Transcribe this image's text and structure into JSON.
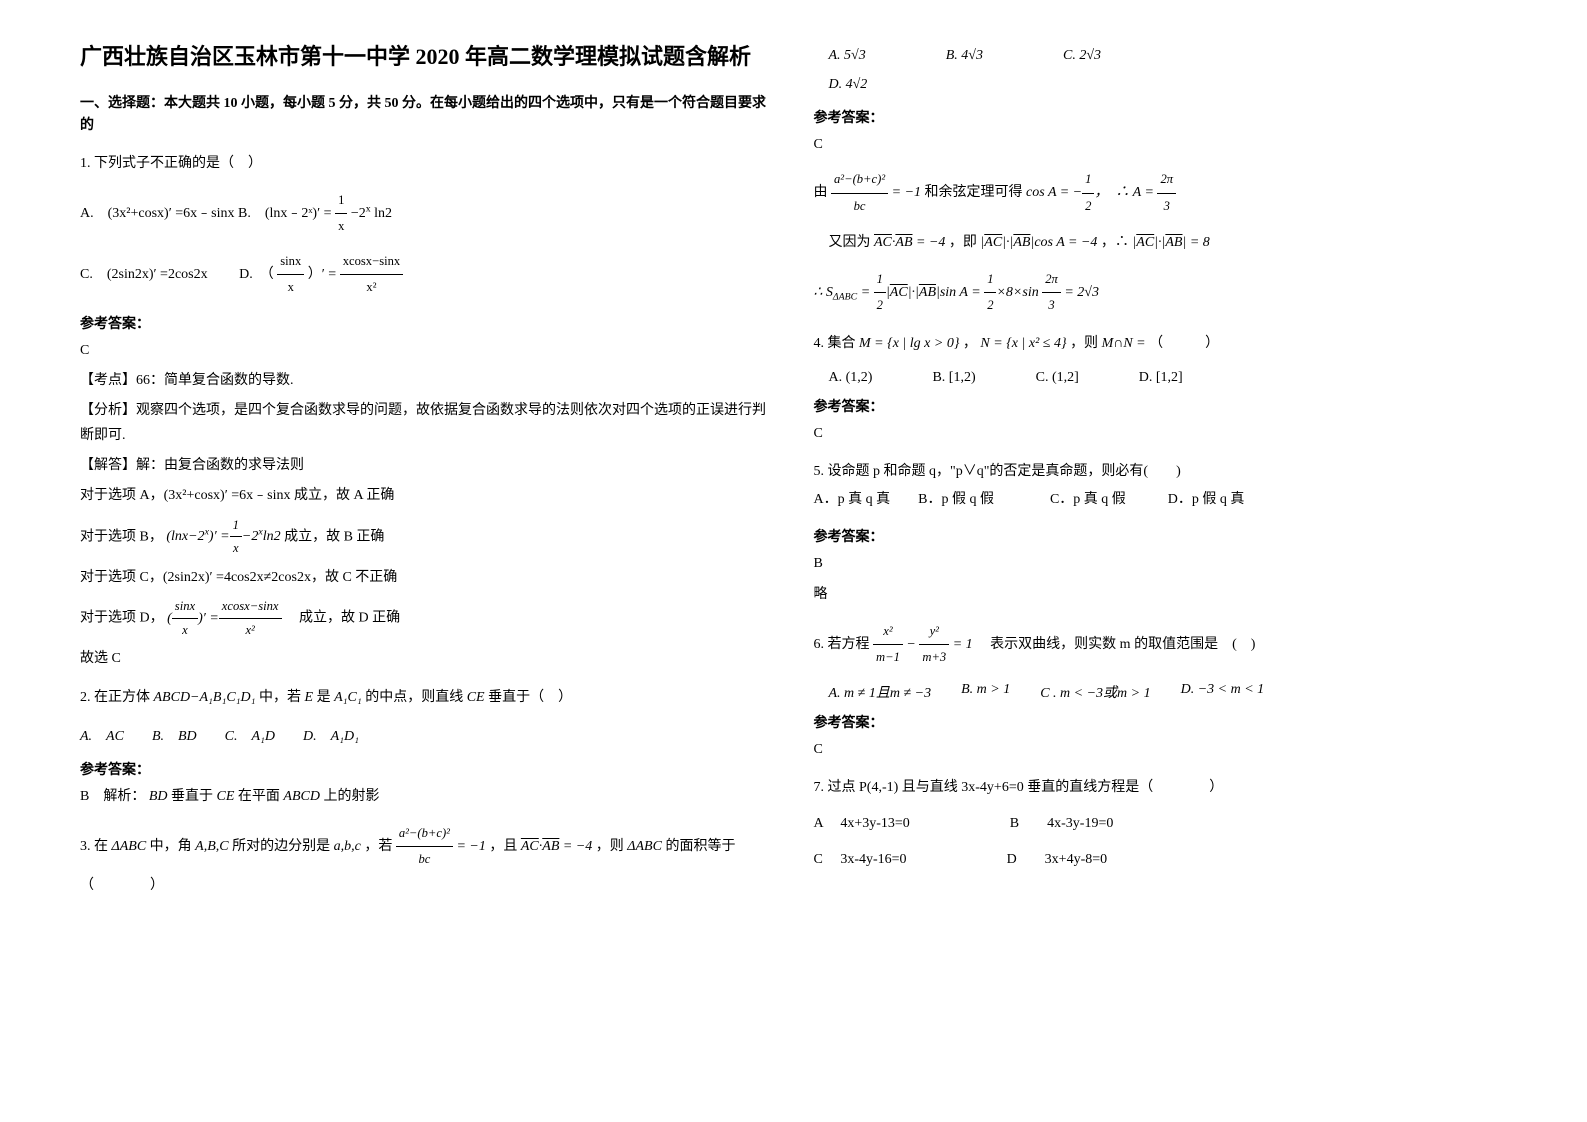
{
  "title": "广西壮族自治区玉林市第十一中学 2020 年高二数学理模拟试题含解析",
  "section1_header": "一、选择题：本大题共 10 小题，每小题 5 分，共 50 分。在每小题给出的四个选项中，只有是一个符合题目要求的",
  "q1": {
    "stem": "1. 下列式子不正确的是（　）",
    "optA_prefix": "A.　(3x²+cosx)′ =6x﹣sinx",
    "optB_prefix": "B.　(lnx﹣2ˣ)′ =",
    "optC_prefix": "C.　(2sin2x)′ =2cos2x",
    "optD_prefix": "D.　（",
    "optD_suffix": "）′ =",
    "answer_label": "参考答案：",
    "answer": "C",
    "analysis_tag": "【考点】66：简单复合函数的导数.",
    "analysis_header": "【分析】观察四个选项，是四个复合函数求导的问题，故依据复合函数求导的法则依次对四个选项的正误进行判断即可.",
    "solve_header": "【解答】解：由复合函数的求导法则",
    "solve_A": "对于选项 A，(3x²+cosx)′ =6x﹣sinx 成立，故 A 正确",
    "solve_B": "对于选项 B，",
    "solve_B_suffix": "成立，故 B 正确",
    "solve_C": "对于选项 C，(2sin2x)′ =4cos2x≠2cos2x，故 C 不正确",
    "solve_D": "对于选项 D，",
    "solve_D_suffix": "　成立，故 D 正确",
    "conclusion": "故选 C"
  },
  "q2": {
    "stem_prefix": "2. 在正方体",
    "stem_mid1": "中，若",
    "stem_mid2": "是",
    "stem_mid3": "的中点，则直线",
    "stem_suffix": "垂直于（　）",
    "options": "A.　AC　　B.　BD　　C.　A₁D　　D.　A₁D₁",
    "answer_label": "参考答案：",
    "answer_prefix": "B　解析：",
    "answer_body": "垂直于",
    "answer_mid": "在平面",
    "answer_suffix": "上的射影"
  },
  "q3": {
    "stem_prefix": "3. 在",
    "stem_mid1": "中，角",
    "stem_mid2": "所对的边分别是",
    "stem_mid3": "，若",
    "stem_mid4": "，且",
    "stem_mid5": "，则",
    "stem_suffix": "的面积等于（　　　　）",
    "optA": "A. 5√3",
    "optB": "B. 4√3",
    "optC": "C. 2√3",
    "optD": "D. 4√2",
    "answer_label": "参考答案：",
    "answer": "C",
    "step1_prefix": "由",
    "step1_suffix": "和余弦定理可得",
    "step2_prefix": "又因为",
    "step2_mid": "，即",
    "step2_end": "，∴"
  },
  "q4": {
    "stem_prefix": "4. 集合",
    "stem_mid1": "，",
    "stem_mid2": "，则",
    "stem_suffix": "（　　　）",
    "optA": "A. (1,2)",
    "optB": "B. [1,2)",
    "optC": "C. (1,2]",
    "optD": "D. [1,2]",
    "answer_label": "参考答案：",
    "answer": "C"
  },
  "q5": {
    "stem": "5. 设命题 p 和命题 q，\"p∨q\"的否定是真命题，则必有(　　)",
    "options": "A．p 真 q 真　　B．p 假 q 假　　　　C．p 真 q 假　　　D．p 假 q 真",
    "answer_label": "参考答案：",
    "answer": "B",
    "note": "略"
  },
  "q6": {
    "stem_prefix": "6. 若方程",
    "stem_suffix": "　表示双曲线，则实数 m 的取值范围是　(　)",
    "optA": "A. m ≠ 1且m ≠ −3",
    "optB": "B. m > 1",
    "optC": "C . m < −3或m > 1",
    "optD": "D. −3 < m < 1",
    "answer_label": "参考答案：",
    "answer": "C"
  },
  "q7": {
    "stem": "7. 过点 P(4,-1) 且与直线 3x-4y+6=0 垂直的直线方程是（　　　　）",
    "optA": "A　 4x+3y-13=0",
    "optB": "B　　4x-3y-19=0",
    "optC": "C　 3x-4y-16=0",
    "optD": "D　　3x+4y-8=0"
  }
}
